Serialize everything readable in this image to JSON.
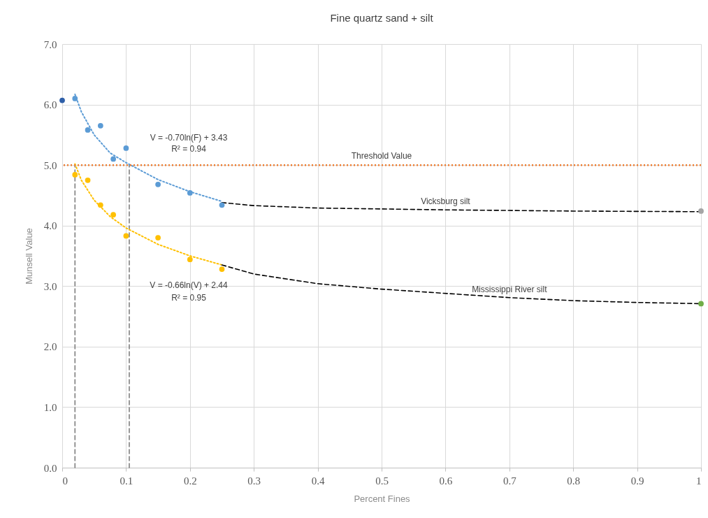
{
  "chart_data": {
    "type": "scatter",
    "title": "Fine quartz sand + silt",
    "xlabel": "Percent Fines",
    "ylabel": "Munsell Value",
    "xlim": [
      0,
      1
    ],
    "xticks": [
      0,
      0.1,
      0.2,
      0.3,
      0.4,
      0.5,
      0.6,
      0.7,
      0.8,
      0.9,
      1
    ],
    "ylim": [
      0,
      7
    ],
    "yticks": [
      {
        "value": 0,
        "label": "0.0"
      },
      {
        "value": 1,
        "label": "1.0"
      },
      {
        "value": 2,
        "label": "2.0"
      },
      {
        "value": 3,
        "label": "3.0"
      },
      {
        "value": 4,
        "label": "4.0"
      },
      {
        "value": 5,
        "label": "5.0"
      },
      {
        "value": 6,
        "label": "6.0"
      },
      {
        "value": 7,
        "label": "7.0"
      }
    ],
    "grid": true,
    "marker": "circle",
    "series": [
      {
        "type": "line",
        "marker": "none",
        "color": "#7f7f7f",
        "line_style": "dashed",
        "x": [
          0.02,
          0.02
        ],
        "values": [
          0,
          5
        ]
      },
      {
        "type": "line",
        "marker": "none",
        "color": "#7f7f7f",
        "line_style": "dashed",
        "x": [
          0.105,
          0.105
        ],
        "values": [
          0,
          5
        ]
      },
      {
        "type": "line",
        "marker": "none",
        "color": "#5b9bd5",
        "line_style": "dotted",
        "x": [
          0.02,
          0.03,
          0.05,
          0.075,
          0.1,
          0.15,
          0.2,
          0.25
        ],
        "values": [
          6.17,
          5.88,
          5.5,
          5.2,
          5.04,
          4.76,
          4.56,
          4.4
        ]
      },
      {
        "type": "line",
        "marker": "none",
        "color": "#ffc000",
        "line_style": "dotted",
        "x": [
          0.02,
          0.03,
          0.05,
          0.075,
          0.1,
          0.15,
          0.2,
          0.25
        ],
        "values": [
          5.02,
          4.75,
          4.42,
          4.15,
          3.96,
          3.69,
          3.5,
          3.35
        ]
      },
      {
        "type": "line",
        "marker": "none",
        "name": "Vicksburg silt",
        "color": "#000000",
        "line_style": "dashed",
        "x": [
          0.25,
          0.3,
          0.4,
          0.6,
          0.8,
          1.0
        ],
        "values": [
          4.38,
          4.33,
          4.29,
          4.26,
          4.24,
          4.23
        ]
      },
      {
        "type": "line",
        "marker": "none",
        "name": "Mississippi River silt",
        "color": "#000000",
        "line_style": "dashed",
        "x": [
          0.25,
          0.3,
          0.4,
          0.5,
          0.7,
          0.8,
          0.9,
          1.0
        ],
        "values": [
          3.35,
          3.2,
          3.04,
          2.95,
          2.81,
          2.76,
          2.73,
          2.71
        ]
      },
      {
        "color": "#2e5fa8",
        "x": [
          0
        ],
        "values": [
          6.07
        ]
      },
      {
        "color": "#5b9bd5",
        "x": [
          0.02,
          0.04,
          0.06,
          0.08,
          0.1,
          0.15,
          0.2,
          0.25
        ],
        "values": [
          6.1,
          5.58,
          5.65,
          5.1,
          5.28,
          4.68,
          4.54,
          4.34
        ]
      },
      {
        "color": "#ffc000",
        "x": [
          0.02,
          0.04,
          0.06,
          0.08,
          0.1,
          0.15,
          0.2,
          0.25
        ],
        "values": [
          4.84,
          4.75,
          4.34,
          4.18,
          3.83,
          3.8,
          3.44,
          3.28
        ]
      },
      {
        "color": "#a5a5a5",
        "x": [
          1
        ],
        "values": [
          4.24
        ]
      },
      {
        "color": "#70ad47",
        "x": [
          1
        ],
        "values": [
          2.71
        ]
      }
    ],
    "ref_lines": [
      {
        "axis": "y",
        "value": 5,
        "label": "Threshold Value",
        "color": "#ed7d31",
        "line_style": "dotted"
      }
    ],
    "annotations": [
      "V = -0.70ln(F) + 3.43",
      "R² = 0.94",
      "V = -0.66ln(V) + 2.44",
      "R² = 0.95"
    ]
  }
}
